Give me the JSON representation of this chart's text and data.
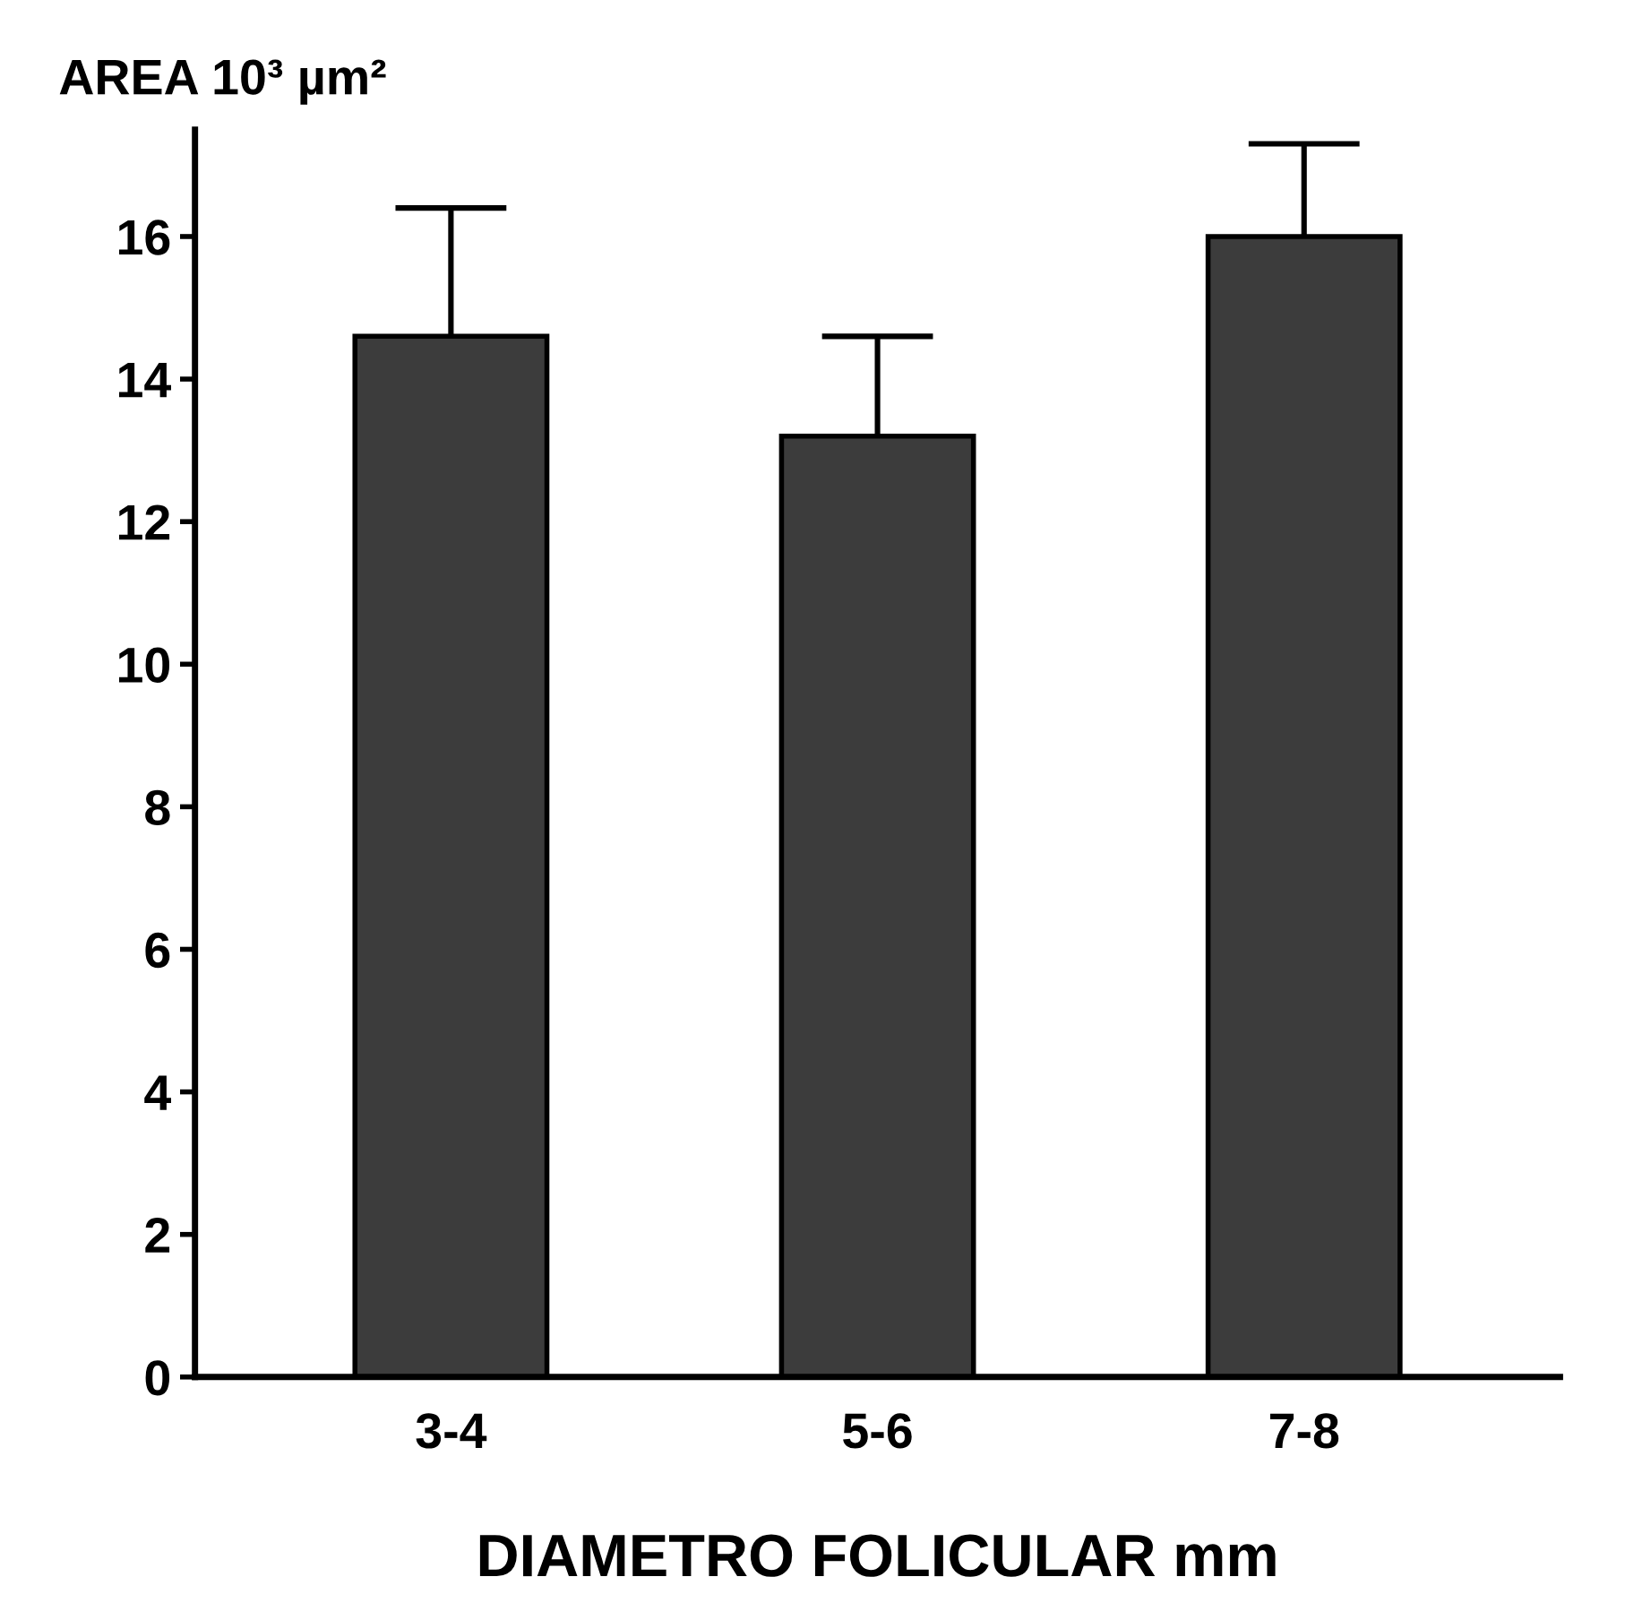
{
  "chart_data": {
    "type": "bar",
    "ylabel": "AREA 10³ µm²",
    "xlabel": "DIAMETRO FOLICULAR mm",
    "categories": [
      "3-4",
      "5-6",
      "7-8"
    ],
    "values": [
      14.6,
      13.2,
      16.0
    ],
    "errors": [
      [
        14.6,
        16.4
      ],
      [
        13.2,
        14.6
      ],
      [
        16.0,
        17.3
      ]
    ],
    "color": "#3c3c3c",
    "ylim": [
      0,
      17.5
    ],
    "yticks": [
      0,
      2,
      4,
      6,
      8,
      10,
      12,
      14,
      16
    ],
    "grid": false,
    "legend": false
  }
}
